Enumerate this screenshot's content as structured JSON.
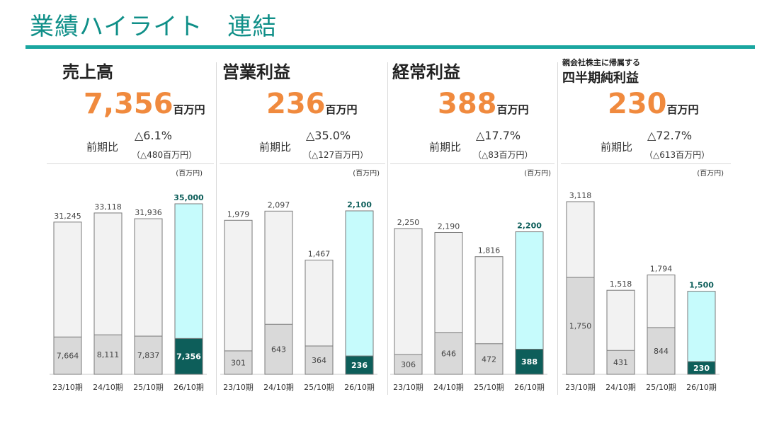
{
  "page_title": "業績ハイライト　連結",
  "colors": {
    "accent": "#1aa6a0",
    "title": "#0f8f88",
    "orange": "#f08a3e",
    "forecast_fill": "#c6fbfc",
    "forecast_dark": "#0d5e5a",
    "bar_light": "#f2f2f2",
    "bar_gray": "#d9d9d9"
  },
  "chart_data": [
    {
      "type": "bar",
      "title": "売上高",
      "headline_value": "7,356",
      "headline_unit": "百万円",
      "comparison_label": "前期比",
      "comparison_pct": "△6.1%",
      "comparison_abs": "（△480百万円）",
      "unit_label": "(百万円)",
      "categories": [
        "23/10期",
        "24/10期",
        "25/10期",
        "26/10期"
      ],
      "series": [
        {
          "name": "total",
          "values": [
            31245,
            33118,
            31936,
            35000
          ],
          "labels": [
            "31,245",
            "33,118",
            "31,936",
            "35,000"
          ]
        },
        {
          "name": "h1",
          "values": [
            7664,
            8111,
            7837,
            7356
          ],
          "labels": [
            "7,664",
            "8,111",
            "7,837",
            "7,356"
          ]
        }
      ],
      "ylim": [
        0,
        35000
      ]
    },
    {
      "type": "bar",
      "title": "営業利益",
      "headline_value": "236",
      "headline_unit": "百万円",
      "comparison_label": "前期比",
      "comparison_pct": "△35.0%",
      "comparison_abs": "（△127百万円）",
      "unit_label": "(百万円)",
      "categories": [
        "23/10期",
        "24/10期",
        "25/10期",
        "26/10期"
      ],
      "series": [
        {
          "name": "total",
          "values": [
            1979,
            2097,
            1467,
            2100
          ],
          "labels": [
            "1,979",
            "2,097",
            "1,467",
            "2,100"
          ]
        },
        {
          "name": "h1",
          "values": [
            301,
            643,
            364,
            236
          ],
          "labels": [
            "301",
            "643",
            "364",
            "236"
          ]
        }
      ],
      "ylim": [
        0,
        2100
      ]
    },
    {
      "type": "bar",
      "title": "経常利益",
      "headline_value": "388",
      "headline_unit": "百万円",
      "comparison_label": "前期比",
      "comparison_pct": "△17.7%",
      "comparison_abs": "（△83百万円）",
      "unit_label": "(百万円)",
      "categories": [
        "23/10期",
        "24/10期",
        "25/10期",
        "26/10期"
      ],
      "series": [
        {
          "name": "total",
          "values": [
            2250,
            2190,
            1816,
            2200
          ],
          "labels": [
            "2,250",
            "2,190",
            "1,816",
            "2,200"
          ]
        },
        {
          "name": "h1",
          "values": [
            306,
            646,
            472,
            388
          ],
          "labels": [
            "306",
            "646",
            "472",
            "388"
          ]
        }
      ],
      "ylim": [
        0,
        2250
      ]
    },
    {
      "type": "bar",
      "subtitle": "親会社株主に帰属する",
      "title": "四半期純利益",
      "headline_value": "230",
      "headline_unit": "百万円",
      "comparison_label": "前期比",
      "comparison_pct": "△72.7%",
      "comparison_abs": "（△613百万円）",
      "unit_label": "(百万円)",
      "categories": [
        "23/10期",
        "24/10期",
        "25/10期",
        "26/10期"
      ],
      "series": [
        {
          "name": "total",
          "values": [
            3118,
            1518,
            1794,
            1500
          ],
          "labels": [
            "3,118",
            "1,518",
            "1,794",
            "1,500"
          ]
        },
        {
          "name": "h1",
          "values": [
            1750,
            431,
            844,
            230
          ],
          "labels": [
            "1,750",
            "431",
            "844",
            "230"
          ]
        }
      ],
      "ylim": [
        0,
        3118
      ]
    }
  ]
}
